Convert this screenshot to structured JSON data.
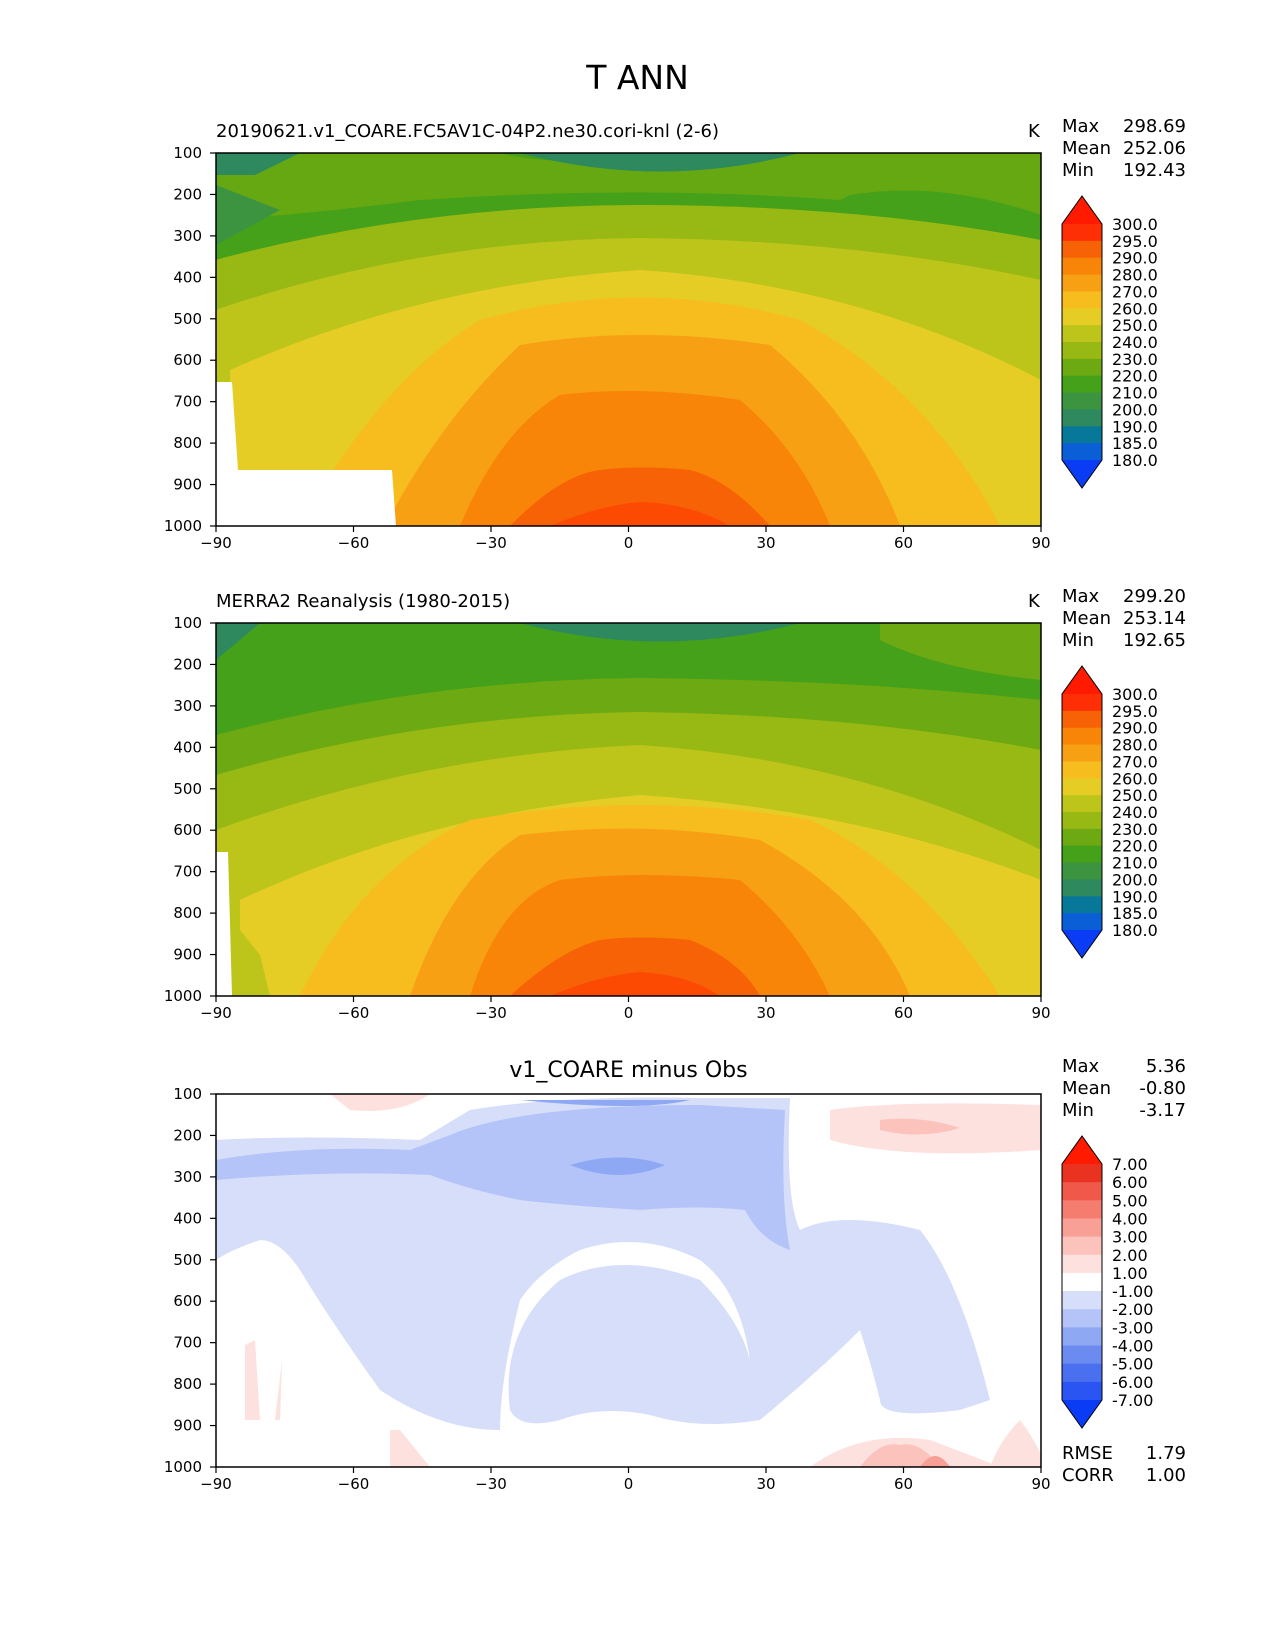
{
  "figure": {
    "title": "T ANN"
  },
  "panels": [
    {
      "title": "20190621.v1_COARE.FC5AV1C-04P2.ne30.cori-knl (2-6)",
      "units": "K",
      "stats": [
        {
          "label": "Max",
          "value": "298.69"
        },
        {
          "label": "Mean",
          "value": "252.06"
        },
        {
          "label": "Min",
          "value": "192.43"
        }
      ]
    },
    {
      "title": "MERRA2 Reanalysis (1980-2015)",
      "units": "K",
      "stats": [
        {
          "label": "Max",
          "value": "299.20"
        },
        {
          "label": "Mean",
          "value": "253.14"
        },
        {
          "label": "Min",
          "value": "192.65"
        }
      ]
    },
    {
      "title": "v1_COARE minus Obs",
      "units": "",
      "stats": [
        {
          "label": "Max",
          "value": "5.36"
        },
        {
          "label": "Mean",
          "value": "-0.80"
        },
        {
          "label": "Min",
          "value": "-3.17"
        }
      ],
      "extra_stats": [
        {
          "label": "RMSE",
          "value": "1.79"
        },
        {
          "label": "CORR",
          "value": "1.00"
        }
      ]
    }
  ],
  "chart_data": [
    {
      "type": "heatmap",
      "title": "20190621.v1_COARE.FC5AV1C-04P2.ne30.cori-knl (2-6)",
      "units": "K",
      "x_ticks": [
        "−90",
        "−60",
        "−30",
        "0",
        "30",
        "60",
        "90"
      ],
      "y_ticks": [
        "100",
        "200",
        "300",
        "400",
        "500",
        "600",
        "700",
        "800",
        "900",
        "1000"
      ],
      "xlim": [
        -90,
        90
      ],
      "ylim": [
        1000,
        100
      ],
      "colorbar_levels": [
        "180.0",
        "185.0",
        "190.0",
        "200.0",
        "210.0",
        "220.0",
        "230.0",
        "240.0",
        "250.0",
        "260.0",
        "270.0",
        "280.0",
        "290.0",
        "295.0",
        "300.0"
      ],
      "colorbar_colors": [
        "#0a3cf5",
        "#0a5fd6",
        "#08789a",
        "#2e8a5e",
        "#3c9440",
        "#45a01a",
        "#6ca912",
        "#98b814",
        "#bdc41a",
        "#e5cd26",
        "#f7bc1e",
        "#f7a014",
        "#f88408",
        "#f86206",
        "#fe2f04",
        "#ff1a00"
      ],
      "max": 298.69,
      "mean": 252.06,
      "min": 192.43
    },
    {
      "type": "heatmap",
      "title": "MERRA2 Reanalysis (1980-2015)",
      "units": "K",
      "x_ticks": [
        "−90",
        "−60",
        "−30",
        "0",
        "30",
        "60",
        "90"
      ],
      "y_ticks": [
        "100",
        "200",
        "300",
        "400",
        "500",
        "600",
        "700",
        "800",
        "900",
        "1000"
      ],
      "xlim": [
        -90,
        90
      ],
      "ylim": [
        1000,
        100
      ],
      "colorbar_levels": [
        "180.0",
        "185.0",
        "190.0",
        "200.0",
        "210.0",
        "220.0",
        "230.0",
        "240.0",
        "250.0",
        "260.0",
        "270.0",
        "280.0",
        "290.0",
        "295.0",
        "300.0"
      ],
      "colorbar_colors": [
        "#0a3cf5",
        "#0a5fd6",
        "#08789a",
        "#2e8a5e",
        "#3c9440",
        "#45a01a",
        "#6ca912",
        "#98b814",
        "#bdc41a",
        "#e5cd26",
        "#f7bc1e",
        "#f7a014",
        "#f88408",
        "#f86206",
        "#fe2f04",
        "#ff1a00"
      ],
      "max": 299.2,
      "mean": 253.14,
      "min": 192.65
    },
    {
      "type": "heatmap",
      "title": "v1_COARE minus Obs",
      "x_ticks": [
        "−90",
        "−60",
        "−30",
        "0",
        "30",
        "60",
        "90"
      ],
      "y_ticks": [
        "100",
        "200",
        "300",
        "400",
        "500",
        "600",
        "700",
        "800",
        "900",
        "1000"
      ],
      "xlim": [
        -90,
        90
      ],
      "ylim": [
        1000,
        100
      ],
      "colorbar_levels": [
        "-7.00",
        "-6.00",
        "-5.00",
        "-4.00",
        "-3.00",
        "-2.00",
        "-1.00",
        "1.00",
        "2.00",
        "3.00",
        "4.00",
        "5.00",
        "6.00",
        "7.00"
      ],
      "colorbar_colors": [
        "#0a3cf5",
        "#2a55f2",
        "#4a70ef",
        "#6b8bf0",
        "#8ea8f3",
        "#b4c4f8",
        "#d6def9",
        "#ffffff",
        "#fde1df",
        "#fcc2bc",
        "#f9a096",
        "#f57d70",
        "#f0584a",
        "#e93320",
        "#ff1a00"
      ],
      "max": 5.36,
      "mean": -0.8,
      "min": -3.17,
      "rmse": 1.79,
      "corr": 1.0
    }
  ]
}
